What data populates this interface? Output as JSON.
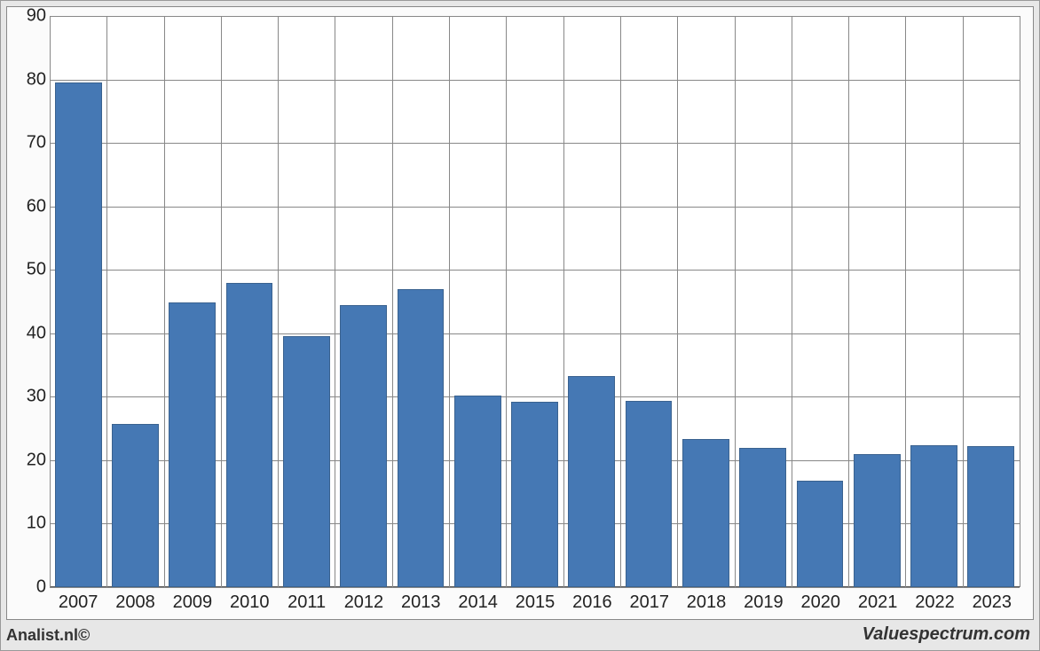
{
  "chart": {
    "type": "bar",
    "categories": [
      "2007",
      "2008",
      "2009",
      "2010",
      "2011",
      "2012",
      "2013",
      "2014",
      "2015",
      "2016",
      "2017",
      "2018",
      "2019",
      "2020",
      "2021",
      "2022",
      "2023"
    ],
    "values": [
      79.5,
      25.7,
      44.8,
      48.0,
      39.6,
      44.5,
      47.0,
      30.2,
      29.2,
      33.3,
      29.3,
      23.3,
      22.0,
      16.8,
      20.9,
      22.4,
      22.2
    ],
    "ymin": 0,
    "ymax": 90,
    "yticks": [
      0,
      10,
      20,
      30,
      40,
      50,
      60,
      70,
      80,
      90
    ],
    "bar_color": "#4578b4",
    "bar_border_color": "#3a628f",
    "grid_color": "#888888",
    "plot_background": "#ffffff",
    "outer_background": "#e7e7e7",
    "bar_width_ratio": 0.82,
    "axis_fontsize_px": 20
  },
  "footer": {
    "left": "Analist.nl©",
    "right": "Valuespectrum.com"
  }
}
